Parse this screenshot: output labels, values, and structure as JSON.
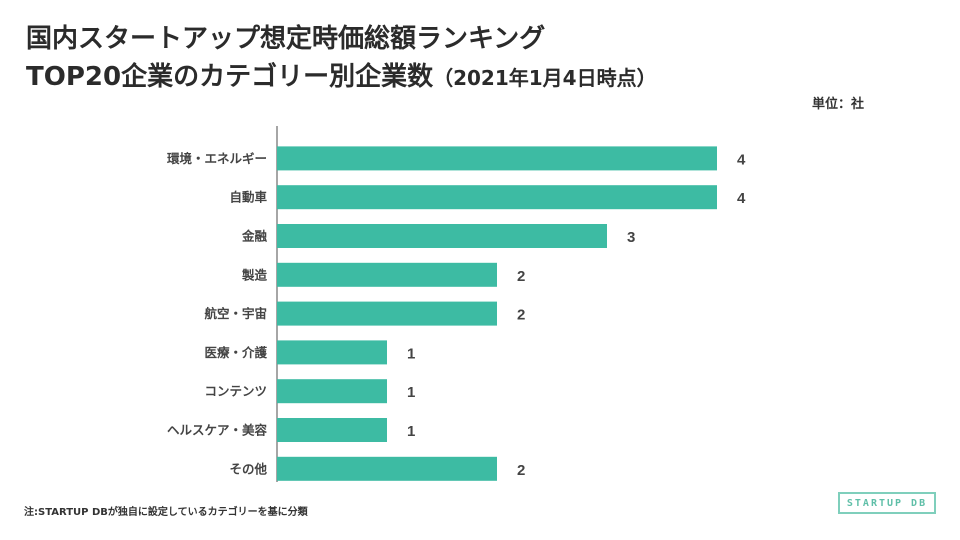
{
  "title_line1": "国内スタートアップ想定時価総額ランキング",
  "title_line2_main": "TOP20企業のカテゴリー別企業数",
  "title_line2_sub": "（2021年1月4日時点）",
  "unit_label": "単位：社",
  "footnote": "注:STARTUP DBが独自に設定しているカテゴリーを基に分類",
  "logo_text": "STARTUP DB",
  "colors": {
    "bar": "#3dbba3",
    "axis": "#888888",
    "label": "#444444"
  },
  "chart_data": {
    "type": "bar",
    "orientation": "horizontal",
    "title": "国内スタートアップ想定時価総額ランキング TOP20企業のカテゴリー別企業数（2021年1月4日時点）",
    "categories": [
      "環境・エネルギー",
      "自動車",
      "金融",
      "製造",
      "航空・宇宙",
      "医療・介護",
      "コンテンツ",
      "ヘルスケア・美容",
      "その他"
    ],
    "values": [
      4,
      4,
      3,
      2,
      2,
      1,
      1,
      1,
      2
    ],
    "xlim": [
      0,
      4
    ],
    "unit": "社",
    "grid": false,
    "legend": "none"
  }
}
